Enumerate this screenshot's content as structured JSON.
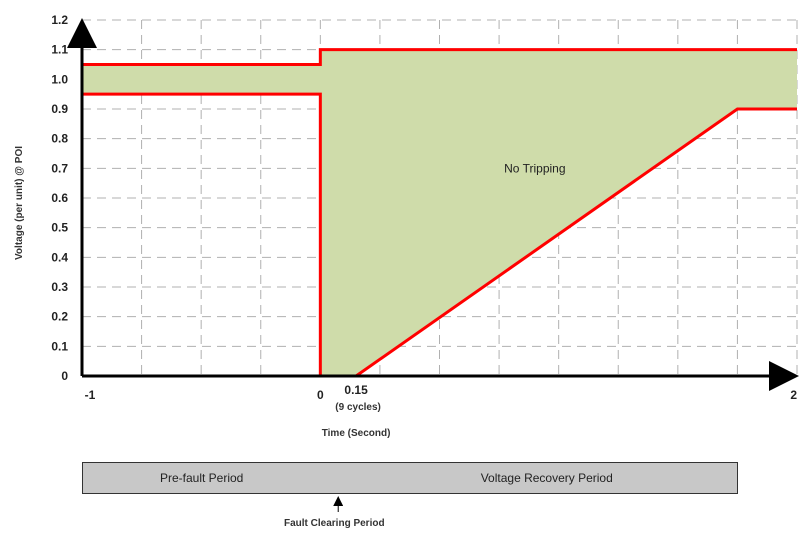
{
  "chart_data": {
    "type": "area",
    "xlabel": "Time (Second)",
    "ylabel": "Voltage (per unit) @ POI",
    "xlim": [
      -1,
      2
    ],
    "ylim": [
      0,
      1.2
    ],
    "x_ticks": [
      {
        "value": -1,
        "label": "-1"
      },
      {
        "value": 0,
        "label": "0"
      },
      {
        "value": 2,
        "label": "2"
      }
    ],
    "y_ticks": [
      {
        "value": 0,
        "label": "0"
      },
      {
        "value": 0.1,
        "label": "0.1"
      },
      {
        "value": 0.2,
        "label": "0.2"
      },
      {
        "value": 0.3,
        "label": "0.3"
      },
      {
        "value": 0.4,
        "label": "0.4"
      },
      {
        "value": 0.5,
        "label": "0.5"
      },
      {
        "value": 0.6,
        "label": "0.6"
      },
      {
        "value": 0.7,
        "label": "0.7"
      },
      {
        "value": 0.8,
        "label": "0.8"
      },
      {
        "value": 0.9,
        "label": "0.9"
      },
      {
        "value": 1.0,
        "label": "1.0"
      },
      {
        "value": 1.1,
        "label": "1.1"
      },
      {
        "value": 1.2,
        "label": "1.2"
      }
    ],
    "grid": true,
    "region_label": "No Tripping",
    "upper_boundary": [
      {
        "x": -1,
        "y": 1.05
      },
      {
        "x": 0,
        "y": 1.05
      },
      {
        "x": 0,
        "y": 1.1
      },
      {
        "x": 2,
        "y": 1.1
      }
    ],
    "lower_boundary": [
      {
        "x": -1,
        "y": 0.95
      },
      {
        "x": 0,
        "y": 0.95
      },
      {
        "x": 0,
        "y": 0
      },
      {
        "x": 0.15,
        "y": 0
      },
      {
        "x": 1.75,
        "y": 0.9
      },
      {
        "x": 2,
        "y": 0.9
      }
    ],
    "clearing_time": {
      "value": 0.15,
      "label": "0.15",
      "sublabel": "(9 cycles)"
    },
    "colors": {
      "fill": "#cfdcaa",
      "boundary": "#ff0000",
      "grid": "#b0b0b0"
    }
  },
  "periods": [
    {
      "name": "Pre-fault Period",
      "start": -1,
      "end": 0
    },
    {
      "name": "",
      "start": 0,
      "end": 0.15
    },
    {
      "name": "Voltage Recovery Period",
      "start": 0.15,
      "end": 1.75
    }
  ],
  "fault_clearing_label": "Fault Clearing Period"
}
